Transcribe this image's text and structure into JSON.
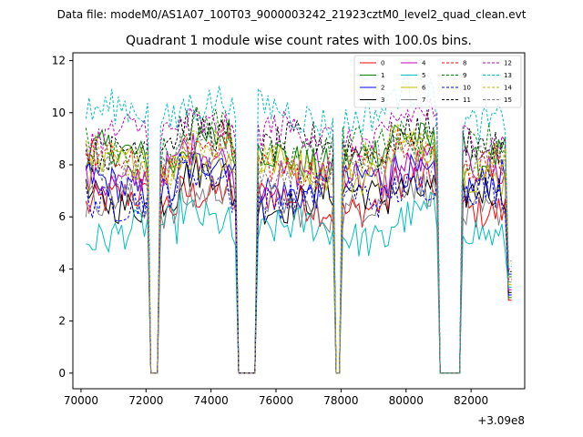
{
  "chart_data": {
    "type": "line",
    "suptitle": "Data file: modeM0/AS1A07_100T03_9000003242_21923cztM0_level2_quad_clean.evt",
    "title": "Quadrant 1 module wise count rates with 100.0s bins.",
    "xlabel": "",
    "ylabel": "",
    "x_offset_label": "+3.09e8",
    "xlim": [
      69750,
      83650
    ],
    "ylim": [
      -0.6,
      12.3
    ],
    "x_ticks": [
      70000,
      72000,
      74000,
      76000,
      78000,
      80000,
      82000
    ],
    "x_tick_labels": [
      "70000",
      "72000",
      "74000",
      "76000",
      "78000",
      "80000",
      "82000"
    ],
    "y_ticks": [
      0,
      2,
      4,
      6,
      8,
      10,
      12
    ],
    "y_tick_labels": [
      "0",
      "2",
      "4",
      "6",
      "8",
      "10",
      "12"
    ],
    "x_start": 70150,
    "bin_width": 100,
    "gaps": [
      [
        72150,
        72350
      ],
      [
        74850,
        75350
      ],
      [
        77800,
        77950
      ],
      [
        81050,
        81650
      ]
    ],
    "legend_position": "upper right",
    "series": [
      {
        "name": "0",
        "color": "#ff0000",
        "dash": "solid",
        "level": 6.5
      },
      {
        "name": "1",
        "color": "#008000",
        "dash": "solid",
        "level": 8.3
      },
      {
        "name": "2",
        "color": "#0000ff",
        "dash": "solid",
        "level": 7.2
      },
      {
        "name": "3",
        "color": "#000000",
        "dash": "solid",
        "level": 6.7
      },
      {
        "name": "4",
        "color": "#bf00bf",
        "dash": "solid",
        "level": 7.6
      },
      {
        "name": "5",
        "color": "#00bfbf",
        "dash": "solid",
        "level": 5.4
      },
      {
        "name": "6",
        "color": "#bfbf00",
        "dash": "solid",
        "level": 7.8
      },
      {
        "name": "7",
        "color": "#808080",
        "dash": "solid",
        "level": 6.4
      },
      {
        "name": "8",
        "color": "#ff0000",
        "dash": "dashed",
        "level": 8.0
      },
      {
        "name": "9",
        "color": "#008000",
        "dash": "dashed",
        "level": 8.6
      },
      {
        "name": "10",
        "color": "#0000ff",
        "dash": "dashed",
        "level": 6.8
      },
      {
        "name": "11",
        "color": "#000000",
        "dash": "dashed",
        "level": 8.7
      },
      {
        "name": "12",
        "color": "#bf00bf",
        "dash": "dashed",
        "level": 9.1
      },
      {
        "name": "13",
        "color": "#00bfbf",
        "dash": "dashed",
        "level": 9.9
      },
      {
        "name": "14",
        "color": "#bfbf00",
        "dash": "dashed",
        "level": 8.1
      },
      {
        "name": "15",
        "color": "#808080",
        "dash": "dashed",
        "level": 7.9
      }
    ]
  }
}
